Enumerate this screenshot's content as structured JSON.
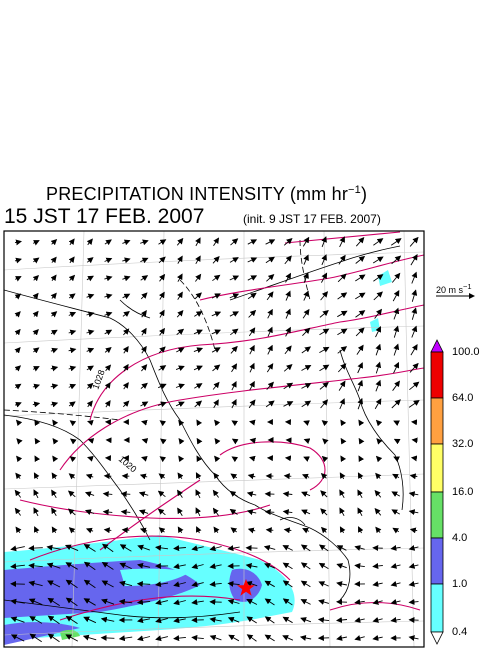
{
  "header": {
    "title": "PRECIPITATION INTENSITY (mm hr",
    "title_exp": "−1",
    "title_end": ")",
    "valid_time": "15 JST 17 FEB. 2007",
    "init_time": "(init. 9 JST 17 FEB. 2007)"
  },
  "wind_scale": {
    "label": "20 m s",
    "exp": "−1"
  },
  "isobar_labels": [
    "1028",
    "1020"
  ],
  "colorbar": {
    "levels": [
      "100.0",
      "64.0",
      "32.0",
      "16.0",
      "4.0",
      "1.0",
      "0.4"
    ],
    "colors": {
      "over": "#c000ff",
      "c64_100": "#ee0000",
      "c32_64": "#ffa040",
      "c16_32": "#ffff66",
      "c4_16": "#66e066",
      "c1_4": "#6666ee",
      "c04_1": "#66ffff",
      "under": "#ffffff"
    }
  },
  "map": {
    "isobar_color": "#cc0066",
    "marker": "red-star"
  }
}
